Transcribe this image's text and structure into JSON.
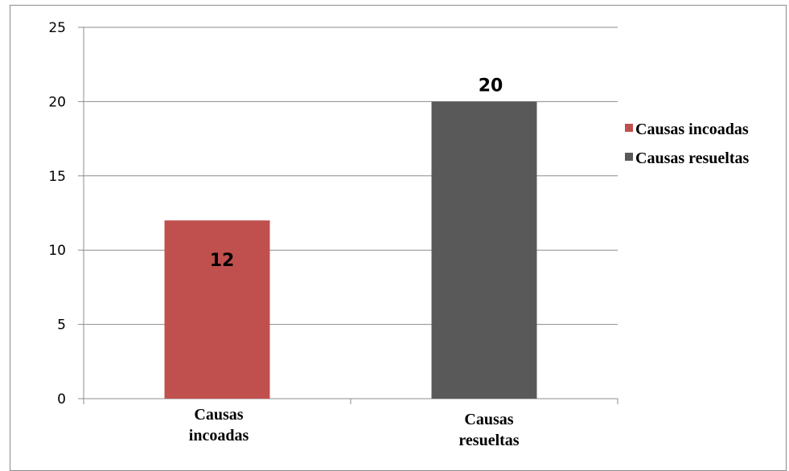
{
  "chart_data": {
    "type": "bar",
    "categories": [
      [
        "Causas",
        "incoadas"
      ],
      [
        "Causas",
        "resueltas"
      ]
    ],
    "values": [
      12,
      20
    ],
    "colors": [
      "#c0504d",
      "#595959"
    ],
    "ylim": [
      0,
      25
    ],
    "yticks": [
      "0",
      "5",
      "10",
      "15",
      "20",
      "25"
    ],
    "ytick_values": [
      0,
      5,
      10,
      15,
      20,
      25
    ],
    "data_labels": [
      "12",
      "20"
    ],
    "grid": true,
    "legend": {
      "position": "right",
      "entries": [
        {
          "label": "Causas incoadas",
          "color": "#c0504d"
        },
        {
          "label": "Causas resueltas",
          "color": "#595959"
        }
      ]
    },
    "title": "",
    "xlabel": "",
    "ylabel": ""
  }
}
